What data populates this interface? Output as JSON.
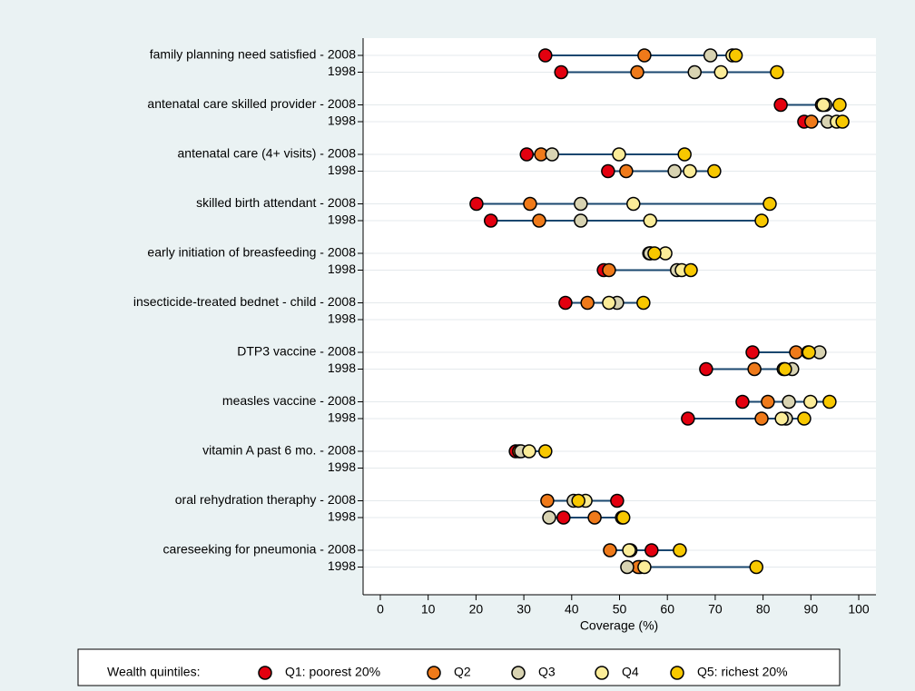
{
  "chart_data": {
    "type": "dot",
    "categories": [
      "family planning need satisfied - 2008",
      "1998",
      "antenatal care skilled provider - 2008",
      "1998",
      "antenatal care (4+ visits) - 2008",
      "1998",
      "skilled birth attendant - 2008",
      "1998",
      "early initiation of breasfeeding - 2008",
      "1998",
      "insecticide-treated bednet - child - 2008",
      "1998",
      "DTP3 vaccine - 2008",
      "1998",
      "measles vaccine - 2008",
      "1998",
      "vitamin A past 6 mo. - 2008",
      "1998",
      "oral rehydration theraphy - 2008",
      "1998",
      "careseeking for pneumonia - 2008",
      "1998"
    ],
    "series": [
      {
        "name": "Q1: poorest 20%",
        "color": "#e3000f",
        "values": [
          34.5,
          37.8,
          83.7,
          88.6,
          30.6,
          47.6,
          20.1,
          23.1,
          56.2,
          46.7,
          38.7,
          null,
          77.8,
          68.1,
          75.7,
          64.3,
          28.3,
          null,
          49.5,
          38.3,
          56.7,
          54.3
        ]
      },
      {
        "name": "Q2",
        "color": "#ef7a1a",
        "values": [
          55.2,
          53.7,
          92.3,
          90.1,
          33.6,
          51.4,
          31.3,
          33.2,
          56.5,
          47.8,
          43.3,
          null,
          86.9,
          78.2,
          81.0,
          79.7,
          29.0,
          null,
          34.9,
          44.8,
          48.0,
          53.9
        ]
      },
      {
        "name": "Q3",
        "color": "#d8d3b2",
        "values": [
          69.0,
          65.7,
          93.0,
          93.5,
          35.9,
          61.5,
          41.9,
          41.9,
          56.4,
          62.0,
          49.5,
          null,
          91.8,
          86.1,
          85.4,
          84.8,
          29.4,
          null,
          40.4,
          35.3,
          52.3,
          51.6
        ]
      },
      {
        "name": "Q4",
        "color": "#fbec98",
        "values": [
          73.6,
          71.2,
          92.6,
          95.4,
          49.9,
          64.7,
          52.9,
          56.4,
          59.6,
          63.0,
          47.8,
          null,
          89.4,
          84.3,
          89.9,
          83.9,
          31.1,
          null,
          42.9,
          50.5,
          52.0,
          55.2
        ]
      },
      {
        "name": "Q5: richest 20%",
        "color": "#f8c800",
        "values": [
          74.3,
          82.9,
          96.0,
          96.6,
          63.6,
          69.8,
          81.4,
          79.7,
          57.3,
          64.9,
          55.0,
          null,
          89.6,
          84.6,
          93.9,
          88.6,
          34.5,
          null,
          41.4,
          50.8,
          62.6,
          78.6
        ]
      }
    ],
    "xlabel": "Coverage (%)",
    "legend_title": "Wealth quintiles:",
    "xlim": [
      -3.6,
      103.6
    ],
    "xticks": [
      0,
      10,
      20,
      30,
      40,
      50,
      60,
      70,
      80,
      90,
      100
    ],
    "grid": true,
    "line_color": "#1a476f"
  }
}
